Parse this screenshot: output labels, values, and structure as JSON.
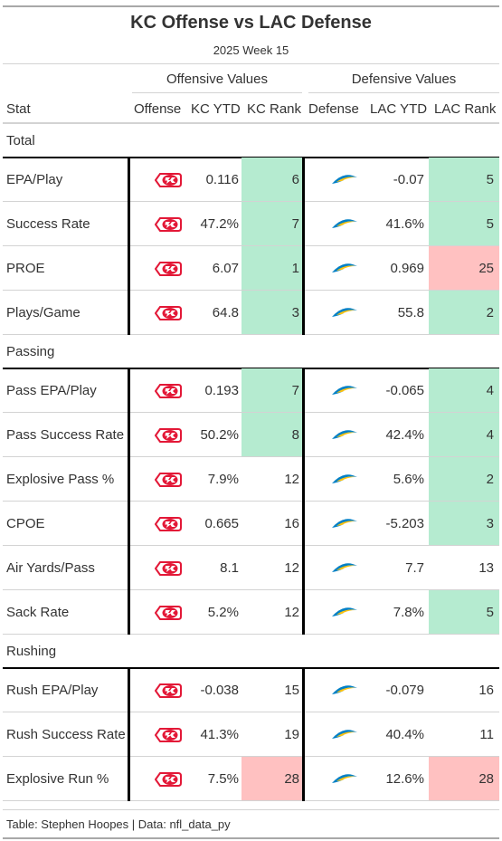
{
  "title": "KC Offense vs LAC Defense",
  "subtitle": "2025 Week 15",
  "spanners": {
    "offense": "Offensive Values",
    "defense": "Defensive Values"
  },
  "columns": {
    "stat": "Stat",
    "offense": "Offense",
    "kc_ytd": "KC YTD",
    "kc_rank": "KC Rank",
    "defense": "Defense",
    "lac_ytd": "LAC YTD",
    "lac_rank": "LAC Rank"
  },
  "colors": {
    "good": "#b5ebd0",
    "bad": "#ffc1c1",
    "chiefs_red": "#e31837",
    "chiefs_gold": "#ffb81c",
    "chargers_blue": "#0080c6",
    "chargers_gold": "#ffc20e"
  },
  "groups": [
    {
      "label": "Total",
      "rows": [
        {
          "stat": "EPA/Play",
          "kc_ytd": "0.116",
          "kc_rank": "6",
          "kc_tone": "good",
          "lac_ytd": "-0.07",
          "lac_rank": "5",
          "lac_tone": "good"
        },
        {
          "stat": "Success Rate",
          "kc_ytd": "47.2%",
          "kc_rank": "7",
          "kc_tone": "good",
          "lac_ytd": "41.6%",
          "lac_rank": "5",
          "lac_tone": "good"
        },
        {
          "stat": "PROE",
          "kc_ytd": "6.07",
          "kc_rank": "1",
          "kc_tone": "good",
          "lac_ytd": "0.969",
          "lac_rank": "25",
          "lac_tone": "bad"
        },
        {
          "stat": "Plays/Game",
          "kc_ytd": "64.8",
          "kc_rank": "3",
          "kc_tone": "good",
          "lac_ytd": "55.8",
          "lac_rank": "2",
          "lac_tone": "good"
        }
      ]
    },
    {
      "label": "Passing",
      "rows": [
        {
          "stat": "Pass EPA/Play",
          "kc_ytd": "0.193",
          "kc_rank": "7",
          "kc_tone": "good",
          "lac_ytd": "-0.065",
          "lac_rank": "4",
          "lac_tone": "good"
        },
        {
          "stat": "Pass Success Rate",
          "kc_ytd": "50.2%",
          "kc_rank": "8",
          "kc_tone": "good",
          "lac_ytd": "42.4%",
          "lac_rank": "4",
          "lac_tone": "good"
        },
        {
          "stat": "Explosive Pass %",
          "kc_ytd": "7.9%",
          "kc_rank": "12",
          "kc_tone": "none",
          "lac_ytd": "5.6%",
          "lac_rank": "2",
          "lac_tone": "good"
        },
        {
          "stat": "CPOE",
          "kc_ytd": "0.665",
          "kc_rank": "16",
          "kc_tone": "none",
          "lac_ytd": "-5.203",
          "lac_rank": "3",
          "lac_tone": "good"
        },
        {
          "stat": "Air Yards/Pass",
          "kc_ytd": "8.1",
          "kc_rank": "12",
          "kc_tone": "none",
          "lac_ytd": "7.7",
          "lac_rank": "13",
          "lac_tone": "none"
        },
        {
          "stat": "Sack Rate",
          "kc_ytd": "5.2%",
          "kc_rank": "12",
          "kc_tone": "none",
          "lac_ytd": "7.8%",
          "lac_rank": "5",
          "lac_tone": "good"
        }
      ]
    },
    {
      "label": "Rushing",
      "rows": [
        {
          "stat": "Rush EPA/Play",
          "kc_ytd": "-0.038",
          "kc_rank": "15",
          "kc_tone": "none",
          "lac_ytd": "-0.079",
          "lac_rank": "16",
          "lac_tone": "none"
        },
        {
          "stat": "Rush Success Rate",
          "kc_ytd": "41.3%",
          "kc_rank": "19",
          "kc_tone": "none",
          "lac_ytd": "40.4%",
          "lac_rank": "11",
          "lac_tone": "none"
        },
        {
          "stat": "Explosive Run %",
          "kc_ytd": "7.5%",
          "kc_rank": "28",
          "kc_tone": "bad",
          "lac_ytd": "12.6%",
          "lac_rank": "28",
          "lac_tone": "bad"
        }
      ]
    }
  ],
  "footer": "Table: Stephen Hoopes | Data: nfl_data_py"
}
